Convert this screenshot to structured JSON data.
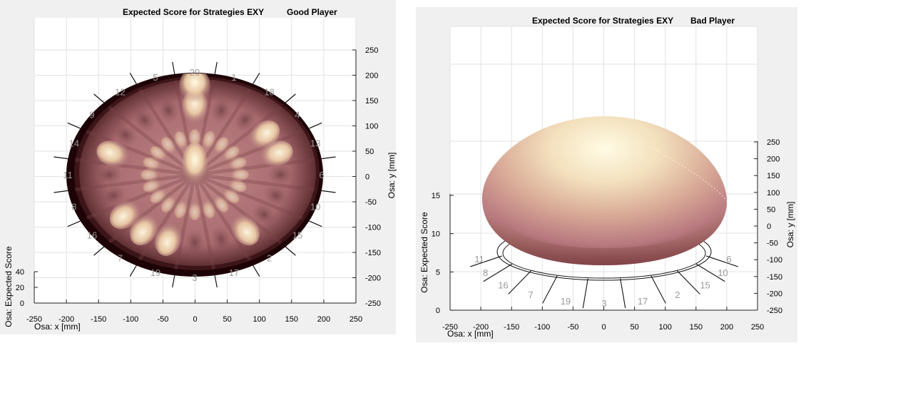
{
  "charts": [
    {
      "id": "left",
      "title_left": "Expected Score for Strategies EXY",
      "title_right": "Good Player",
      "xlabel": "Osa: x [mm]",
      "ylabel": "Osa: y [mm]",
      "zlabel": "Osa: Expected Score",
      "x_ticks": [
        "-250",
        "-200",
        "-150",
        "-100",
        "-50",
        "0",
        "50",
        "100",
        "150",
        "200",
        "250"
      ],
      "y_ticks": [
        "250",
        "200",
        "150",
        "100",
        "50",
        "0",
        "-50",
        "-100",
        "-150",
        "-200",
        "-250"
      ],
      "z_ticks": [
        "40",
        "20",
        "0"
      ],
      "segments": [
        "20",
        "1",
        "18",
        "4",
        "13",
        "6",
        "10",
        "15",
        "2",
        "17",
        "3",
        "19",
        "7",
        "16",
        "8",
        "11",
        "14",
        "9",
        "12",
        "5"
      ]
    },
    {
      "id": "right",
      "title_left": "Expected Score for Strategies EXY",
      "title_right": "Bad Player",
      "xlabel": "Osa: x [mm]",
      "ylabel": "Osa: y [mm]",
      "zlabel": "Osa: Expected Score",
      "x_ticks": [
        "-250",
        "-200",
        "-150",
        "-100",
        "-50",
        "0",
        "50",
        "100",
        "150",
        "200",
        "250"
      ],
      "y_ticks": [
        "250",
        "200",
        "150",
        "100",
        "50",
        "0",
        "-50",
        "-100",
        "-150",
        "-200",
        "-250"
      ],
      "z_ticks": [
        "15",
        "10",
        "5",
        "0"
      ],
      "segments": [
        "6",
        "10",
        "15",
        "2",
        "17",
        "3",
        "19",
        "7",
        "16",
        "8",
        "11"
      ]
    }
  ],
  "chart_data": [
    {
      "type": "heatmap",
      "title": "Expected Score for Strategies EXY",
      "subtitle": "Good Player",
      "xlabel": "Osa: x [mm]",
      "ylabel": "Osa: y [mm]",
      "zlabel": "Osa: Expected Score",
      "xlim": [
        -250,
        250
      ],
      "ylim": [
        -250,
        250
      ],
      "zlim": [
        0,
        40
      ],
      "grid": true
    },
    {
      "type": "heatmap",
      "title": "Expected Score for Strategies EXY",
      "subtitle": "Bad Player",
      "xlabel": "Osa: x [mm]",
      "ylabel": "Osa: y [mm]",
      "zlabel": "Osa: Expected Score",
      "xlim": [
        -250,
        250
      ],
      "ylim": [
        -250,
        250
      ],
      "zlim": [
        0,
        15
      ],
      "grid": true
    }
  ]
}
